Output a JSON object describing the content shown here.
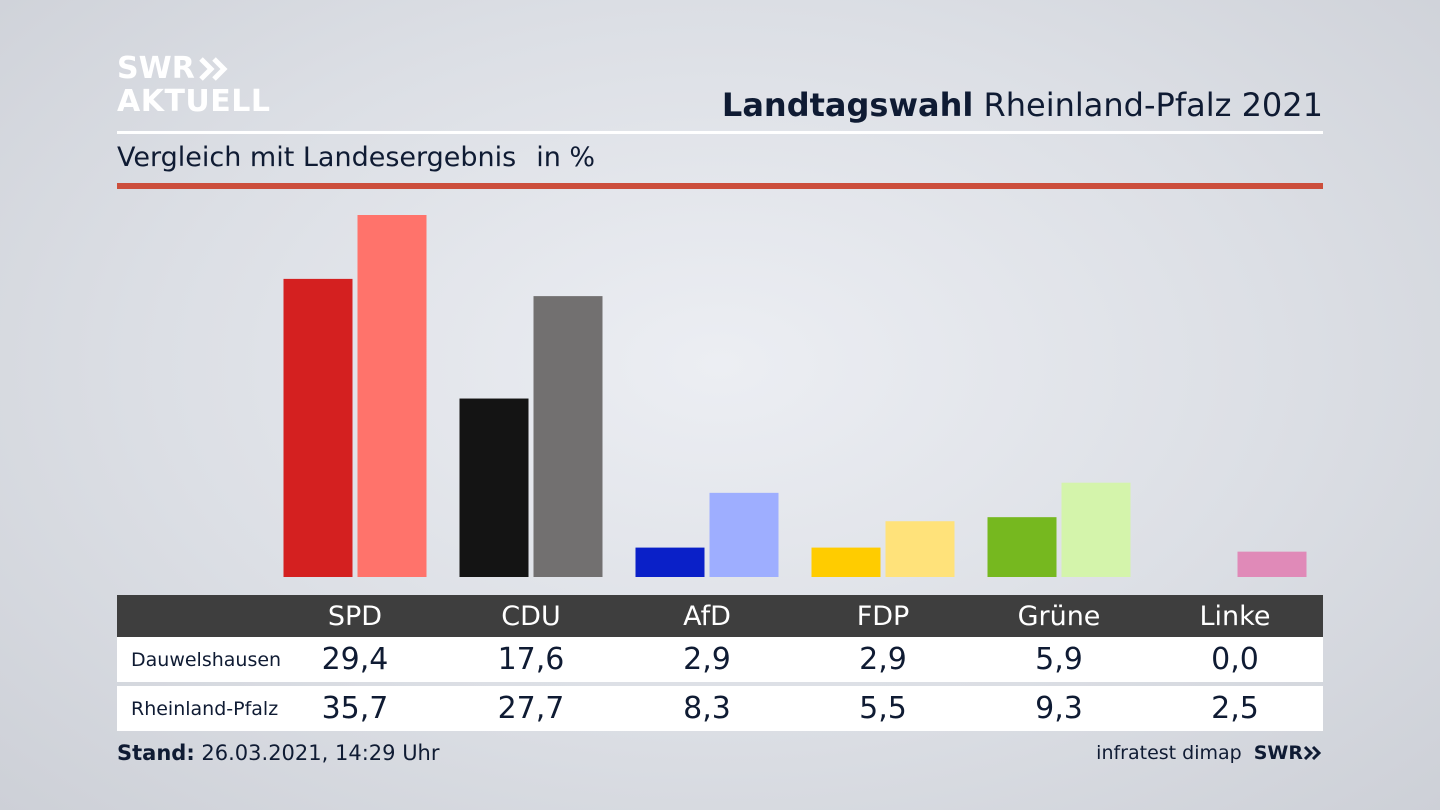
{
  "logo": {
    "line1": "SWR",
    "line2": "AKTUELL"
  },
  "header": {
    "title_bold": "Landtagswahl",
    "title_rest": "Rheinland-Pfalz 2021"
  },
  "subtitle": {
    "text": "Vergleich mit Landesergebnis",
    "unit": "in %"
  },
  "colors": {
    "accent_rule": "#cc4e3c",
    "table_header_bg": "#3e3e3e"
  },
  "chart_data": {
    "type": "bar",
    "categories": [
      "SPD",
      "CDU",
      "AfD",
      "FDP",
      "Grüne",
      "Linke"
    ],
    "series": [
      {
        "name": "Dauwelshausen",
        "values": [
          29.4,
          17.6,
          2.9,
          2.9,
          5.9,
          0.0
        ],
        "colors": [
          "#d42020",
          "#141414",
          "#0a20c8",
          "#ffcc00",
          "#76b81f",
          "#d983b4"
        ]
      },
      {
        "name": "Rheinland-Pfalz",
        "values": [
          35.7,
          27.7,
          8.3,
          5.5,
          9.3,
          2.5
        ],
        "colors": [
          "#ff736b",
          "#727070",
          "#9eaeff",
          "#ffe27a",
          "#d4f4ab",
          "#e08ab8"
        ]
      }
    ],
    "ylim": [
      0,
      35.7
    ],
    "grid": false,
    "legend": "table below chart"
  },
  "table": {
    "columns": [
      "SPD",
      "CDU",
      "AfD",
      "FDP",
      "Grüne",
      "Linke"
    ],
    "rows": [
      {
        "label": "Dauwelshausen",
        "values": [
          "29,4",
          "17,6",
          "2,9",
          "2,9",
          "5,9",
          "0,0"
        ]
      },
      {
        "label": "Rheinland-Pfalz",
        "values": [
          "35,7",
          "27,7",
          "8,3",
          "5,5",
          "9,3",
          "2,5"
        ]
      }
    ]
  },
  "footer": {
    "stand_label": "Stand:",
    "stand_value": "26.03.2021, 14:29 Uhr",
    "source": "infratest dimap",
    "brand": "SWR"
  }
}
